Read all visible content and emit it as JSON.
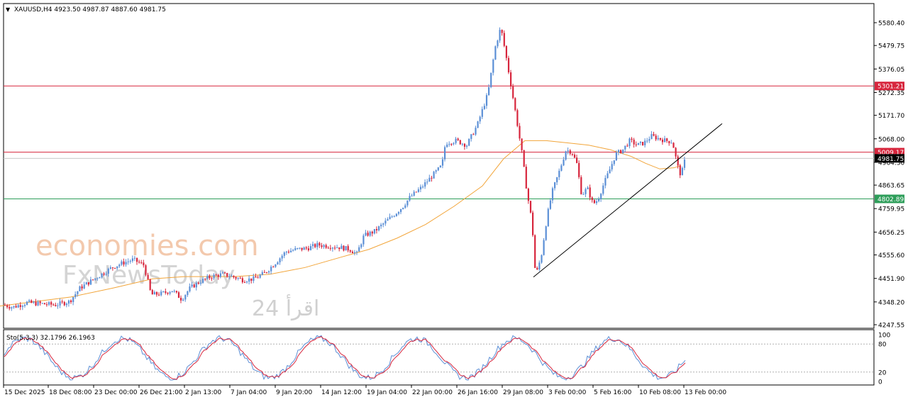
{
  "chart_data": {
    "type": "candlestick",
    "symbol_header": "XAUUSD,H4  4923.50 4987.87 4887.60 4981.75",
    "y_range": [
      4247.55,
      5620
    ],
    "y_ticks": [
      "5580.40",
      "5479.75",
      "5376.05",
      "5272.35",
      "5171.70",
      "5068.00",
      "4964.30",
      "4863.65",
      "4759.95",
      "4656.25",
      "4555.60",
      "4451.90",
      "4348.20",
      "4247.55"
    ],
    "x_ticks": [
      "15 Dec 2025",
      "18 Dec 08:00",
      "23 Dec 00:00",
      "26 Dec 21:00",
      "2 Jan 13:00",
      "7 Jan 04:00",
      "9 Jan 20:00",
      "14 Jan 12:00",
      "19 Jan 04:00",
      "22 Jan 00:00",
      "26 Jan 16:00",
      "29 Jan 08:00",
      "3 Feb 00:00",
      "5 Feb 16:00",
      "10 Feb 08:00",
      "13 Feb 00:00"
    ],
    "price_points": [
      [
        0,
        4340
      ],
      [
        20,
        4325
      ],
      [
        40,
        4345
      ],
      [
        60,
        4340
      ],
      [
        80,
        4335
      ],
      [
        100,
        4350
      ],
      [
        115,
        4410
      ],
      [
        130,
        4440
      ],
      [
        145,
        4470
      ],
      [
        160,
        4500
      ],
      [
        175,
        4520
      ],
      [
        190,
        4535
      ],
      [
        205,
        4510
      ],
      [
        215,
        4380
      ],
      [
        230,
        4385
      ],
      [
        245,
        4400
      ],
      [
        258,
        4360
      ],
      [
        270,
        4410
      ],
      [
        285,
        4440
      ],
      [
        300,
        4460
      ],
      [
        315,
        4470
      ],
      [
        330,
        4460
      ],
      [
        345,
        4445
      ],
      [
        360,
        4450
      ],
      [
        375,
        4475
      ],
      [
        390,
        4520
      ],
      [
        405,
        4570
      ],
      [
        420,
        4580
      ],
      [
        435,
        4585
      ],
      [
        450,
        4600
      ],
      [
        465,
        4595
      ],
      [
        480,
        4590
      ],
      [
        495,
        4580
      ],
      [
        505,
        4560
      ],
      [
        515,
        4640
      ],
      [
        530,
        4660
      ],
      [
        545,
        4700
      ],
      [
        560,
        4740
      ],
      [
        570,
        4770
      ],
      [
        580,
        4810
      ],
      [
        595,
        4850
      ],
      [
        610,
        4900
      ],
      [
        625,
        4950
      ],
      [
        630,
        5050
      ],
      [
        645,
        5060
      ],
      [
        660,
        5040
      ],
      [
        675,
        5130
      ],
      [
        690,
        5270
      ],
      [
        700,
        5470
      ],
      [
        708,
        5560
      ],
      [
        715,
        5440
      ],
      [
        722,
        5310
      ],
      [
        730,
        5160
      ],
      [
        738,
        5000
      ],
      [
        745,
        4830
      ],
      [
        752,
        4700
      ],
      [
        757,
        4460
      ],
      [
        765,
        4550
      ],
      [
        773,
        4720
      ],
      [
        780,
        4830
      ],
      [
        790,
        4920
      ],
      [
        800,
        5020
      ],
      [
        808,
        5010
      ],
      [
        815,
        4960
      ],
      [
        822,
        4820
      ],
      [
        830,
        4850
      ],
      [
        838,
        4780
      ],
      [
        845,
        4800
      ],
      [
        852,
        4860
      ],
      [
        860,
        4920
      ],
      [
        870,
        5000
      ],
      [
        880,
        5020
      ],
      [
        890,
        5060
      ],
      [
        900,
        5040
      ],
      [
        910,
        5050
      ],
      [
        920,
        5080
      ],
      [
        930,
        5070
      ],
      [
        940,
        5060
      ],
      [
        950,
        5055
      ],
      [
        957,
        4950
      ],
      [
        962,
        4905
      ],
      [
        968,
        4981
      ]
    ],
    "moving_average": [
      [
        0,
        4330
      ],
      [
        100,
        4370
      ],
      [
        160,
        4410
      ],
      [
        215,
        4450
      ],
      [
        260,
        4460
      ],
      [
        330,
        4460
      ],
      [
        380,
        4470
      ],
      [
        430,
        4500
      ],
      [
        480,
        4545
      ],
      [
        520,
        4580
      ],
      [
        560,
        4630
      ],
      [
        600,
        4690
      ],
      [
        640,
        4770
      ],
      [
        680,
        4860
      ],
      [
        710,
        4980
      ],
      [
        740,
        5060
      ],
      [
        770,
        5060
      ],
      [
        800,
        5050
      ],
      [
        830,
        5040
      ],
      [
        860,
        5020
      ],
      [
        890,
        4990
      ],
      [
        910,
        4960
      ],
      [
        930,
        4935
      ],
      [
        950,
        4940
      ],
      [
        960,
        4950
      ]
    ],
    "support_trendline": [
      [
        752,
        4458
      ],
      [
        1018,
        5135
      ]
    ],
    "h_lines": [
      {
        "value": 5301.21,
        "label": "5301.21",
        "color": "#d7263d"
      },
      {
        "value": 5009.17,
        "label": "5009.17",
        "color": "#d7263d"
      },
      {
        "value": 4981.75,
        "label": "4981.75",
        "color": "#000000"
      },
      {
        "value": 4802.89,
        "label": "4802.89",
        "color": "#2e9e5a"
      }
    ],
    "indicator": {
      "label": "Sto(5,3,3) 32.1796 26.1963",
      "levels": [
        "100",
        "80",
        "20",
        "0"
      ],
      "main_color": "#5b8fd6",
      "signal_color": "#d7263d"
    },
    "colors": {
      "up": "#5b8fd6",
      "down": "#d7263d",
      "ma": "#f2a53a",
      "grid_dotted": "#b0b0b0"
    }
  },
  "watermark": {
    "brand": "economies.com",
    "partner": "FxNewsToday",
    "partner2": "اقرأ 24"
  }
}
